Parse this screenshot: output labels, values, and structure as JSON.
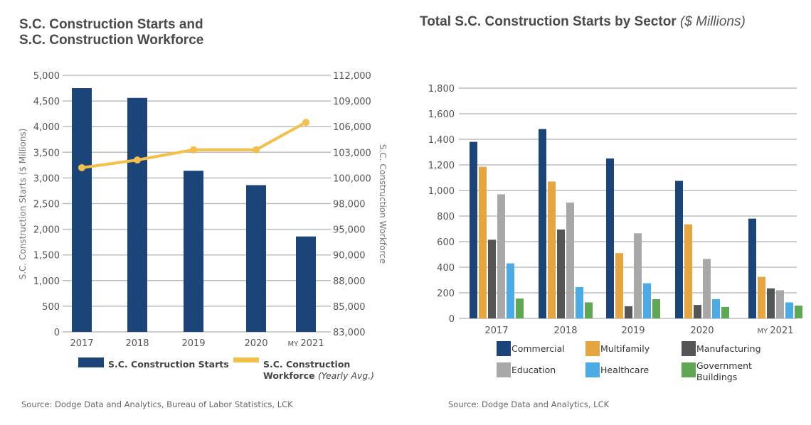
{
  "chart_data": [
    {
      "type": "bar+line",
      "title_line1": "S.C. Construction Starts and",
      "title_line2": "S.C. Construction Workforce",
      "categories": [
        "2017",
        "2018",
        "2019",
        "2020",
        "MY 2021"
      ],
      "ylabel": "S.C. Construction Starts ($ Millions)",
      "y2label": "S.C. Construction Workforce",
      "ylim": [
        0,
        5000
      ],
      "yticks": [
        "0",
        "500",
        "1,000",
        "1,500",
        "2,000",
        "2,500",
        "3,000",
        "3,500",
        "4,000",
        "4,500",
        "5,000"
      ],
      "y2ticks": [
        "83,000",
        "85,000",
        "88,000",
        "90,000",
        "95,000",
        "98,000",
        "100,000",
        "103,000",
        "106,000",
        "109,000",
        "112,000"
      ],
      "grid": true,
      "series": [
        {
          "name": "S.C. Construction Starts",
          "type": "bar",
          "color": "#1b4478",
          "values": [
            4750,
            4560,
            3140,
            2860,
            1860
          ]
        },
        {
          "name": "S.C. Construction Workforce",
          "name_suffix": "(Yearly Avg.)",
          "type": "line",
          "axis": "right",
          "color": "#f5c04a",
          "values": [
            101200,
            102100,
            103300,
            103300,
            106500
          ]
        }
      ],
      "legend": "bottom",
      "source": "Source: Dodge Data and Analytics, Bureau of Labor Statistics, LCK"
    },
    {
      "type": "bar",
      "title": "Total S.C. Construction Starts by Sector",
      "title_unit": "($ Millions)",
      "categories": [
        "2017",
        "2018",
        "2019",
        "2020",
        "MY 2021"
      ],
      "ylim": [
        0,
        1800
      ],
      "yticks": [
        "0",
        "200",
        "400",
        "600",
        "800",
        "1,000",
        "1,200",
        "1,400",
        "1,600",
        "1,800"
      ],
      "grid": true,
      "series": [
        {
          "name": "Commercial",
          "color": "#1b4478",
          "values": [
            1380,
            1480,
            1250,
            1075,
            780
          ]
        },
        {
          "name": "Multifamily",
          "color": "#e5a63f",
          "values": [
            1185,
            1070,
            510,
            735,
            325
          ]
        },
        {
          "name": "Manufacturing",
          "color": "#545557",
          "values": [
            615,
            695,
            95,
            105,
            235
          ]
        },
        {
          "name": "Education",
          "color": "#a8a8a8",
          "values": [
            970,
            905,
            665,
            465,
            220
          ]
        },
        {
          "name": "Healthcare",
          "color": "#4aabe6",
          "values": [
            430,
            245,
            275,
            150,
            125
          ]
        },
        {
          "name": "Government Buildings",
          "color": "#5fa752",
          "values": [
            155,
            125,
            150,
            90,
            100
          ]
        }
      ],
      "legend": "bottom",
      "source": "Source: Dodge Data and Analytics, LCK"
    }
  ]
}
